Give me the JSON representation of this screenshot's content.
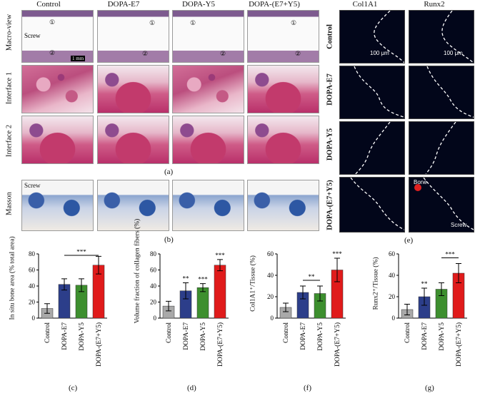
{
  "histology": {
    "columns": [
      "Control",
      "DOPA-E7",
      "DOPA-Y5",
      "DOPA-(E7+Y5)"
    ],
    "rows": [
      "Macro-view",
      "Interface 1",
      "Interface 2"
    ],
    "screw_label": "Screw",
    "marker_1": "①",
    "marker_2": "②",
    "scale_macro": "1 mm",
    "panel_a": "(a)",
    "masson_row": "Masson",
    "masson_screw": "Screw",
    "panel_b": "(b)"
  },
  "fluorescence": {
    "columns": [
      "Col1A1",
      "Runx2"
    ],
    "rows": [
      "Control",
      "DOPA-E7",
      "DOPA-Y5",
      "DOPA-(E7+Y5)"
    ],
    "scale": "100 μm",
    "bone_label": "Bone",
    "screw_label": "Screw",
    "panel_e": "(e)"
  },
  "chart_data": [
    {
      "type": "bar",
      "panel": "(c)",
      "ylabel": "In situ bone area (% total area)",
      "categories": [
        "Control",
        "DOPA-E7",
        "DOPA-Y5",
        "DOPA-(E7+Y5)"
      ],
      "values": [
        12,
        42,
        41,
        66
      ],
      "errors": [
        6,
        7,
        8,
        11
      ],
      "ylim": [
        0,
        80
      ],
      "yticks": [
        "0",
        "20",
        "40",
        "60",
        "80"
      ],
      "colors": [
        "#a9a9a9",
        "#2c3e8a",
        "#3d8f2e",
        "#e01b1b"
      ],
      "stars": [
        "",
        "",
        "",
        ""
      ],
      "bracket": {
        "from": 1,
        "to": 3,
        "label": "***"
      }
    },
    {
      "type": "bar",
      "panel": "(d)",
      "ylabel": "Volume fraction of collagen fibers (%)",
      "categories": [
        "Control",
        "DOPA-E7",
        "DOPA-Y5",
        "DOPA-(E7+Y5)"
      ],
      "values": [
        15,
        34,
        38,
        66
      ],
      "errors": [
        6,
        10,
        5,
        7
      ],
      "ylim": [
        0,
        80
      ],
      "yticks": [
        "0",
        "20",
        "40",
        "60",
        "80"
      ],
      "colors": [
        "#a9a9a9",
        "#2c3e8a",
        "#3d8f2e",
        "#e01b1b"
      ],
      "stars": [
        "",
        "**",
        "***",
        "***"
      ],
      "bracket": null
    },
    {
      "type": "bar",
      "panel": "(f)",
      "ylabel": "Col1A1⁺/Tissue (%)",
      "categories": [
        "Control",
        "DOPA-E7",
        "DOPA-Y5",
        "DOPA-(E7+Y5)"
      ],
      "values": [
        10,
        24,
        23,
        45
      ],
      "errors": [
        4,
        6,
        7,
        11
      ],
      "ylim": [
        0,
        60
      ],
      "yticks": [
        "0",
        "20",
        "40",
        "60"
      ],
      "colors": [
        "#a9a9a9",
        "#2c3e8a",
        "#3d8f2e",
        "#e01b1b"
      ],
      "stars": [
        "",
        "",
        "",
        "***"
      ],
      "bracket": {
        "from": 1,
        "to": 2,
        "label": "**"
      }
    },
    {
      "type": "bar",
      "panel": "(g)",
      "ylabel": "Runx2⁺/Tissue (%)",
      "categories": [
        "Control",
        "DOPA-E7",
        "DOPA-Y5",
        "DOPA-(E7+Y5)"
      ],
      "values": [
        8,
        20,
        27,
        42
      ],
      "errors": [
        5,
        8,
        6,
        9
      ],
      "ylim": [
        0,
        60
      ],
      "yticks": [
        "0",
        "20",
        "40",
        "60"
      ],
      "colors": [
        "#a9a9a9",
        "#2c3e8a",
        "#3d8f2e",
        "#e01b1b"
      ],
      "stars": [
        "",
        "**",
        "",
        ""
      ],
      "bracket": {
        "from": 2,
        "to": 3,
        "label": "***"
      }
    }
  ]
}
